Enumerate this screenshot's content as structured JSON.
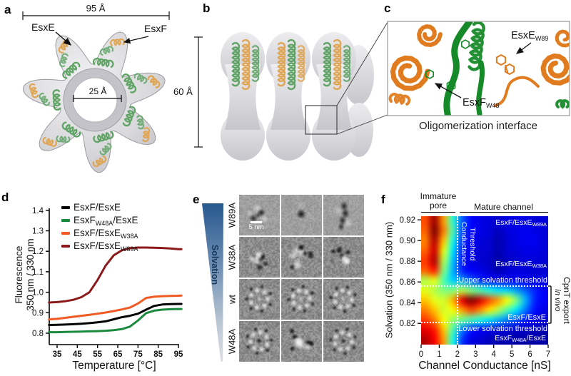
{
  "panels": {
    "a": "a",
    "b": "b",
    "c": "c",
    "d": "d",
    "e": "e",
    "f": "f"
  },
  "panel_a": {
    "width_label": "95 Å",
    "pore_label": "25 Å",
    "esxe": "EsxE",
    "esxf": "EsxF"
  },
  "panel_b": {
    "height_label": "60 Å"
  },
  "panel_c": {
    "esxe": {
      "pre": "EsxE",
      "sub": "W89"
    },
    "esxf": {
      "pre": "EsxF",
      "sub": "W48"
    },
    "caption": "Oligomerization interface"
  },
  "panel_d": {
    "legend": [
      {
        "pre": "EsxF/EsxE",
        "sub": "",
        "post": "",
        "color": "#000000"
      },
      {
        "pre": "EsxF",
        "sub": "W48A",
        "post": "/EsxE",
        "color": "#1b8a3f"
      },
      {
        "pre": "EsxF/EsxE",
        "sub": "W38A",
        "post": "",
        "color": "#f05a24"
      },
      {
        "pre": "EsxF/EsxE",
        "sub": "W89A",
        "post": "",
        "color": "#8c1a1a"
      }
    ]
  },
  "panel_e": {
    "solvation_label": "Solvation",
    "scale_bar": "5 nm",
    "grid": [
      {
        "label": "W89A",
        "cells": [
          "pair",
          "dot",
          "rod"
        ]
      },
      {
        "label": "W38A",
        "cells": [
          "cluster-a",
          "cluster-b",
          "cluster-c"
        ]
      },
      {
        "label": "wt",
        "cells": [
          "ring-a",
          "ring-b",
          "ring-c"
        ]
      },
      {
        "label": "W48A",
        "cells": [
          "ring-d",
          "cluster-d",
          "ring-e"
        ]
      }
    ]
  },
  "panel_f": {
    "immature_line1": "Immature",
    "immature_line2": "pore",
    "mature": "Mature channel",
    "threshold_line1": "Conductance",
    "threshold_line2": "Threshold",
    "upper_threshold": "Upper solvation threshold",
    "lower_threshold": "Lower solvation threshold",
    "label_w89a": {
      "pre": "EsxF/EsxE",
      "sub": "W89A",
      "post": ""
    },
    "label_w38a": {
      "pre": "EsxF/EsxE",
      "sub": "W38A",
      "post": ""
    },
    "label_wt": {
      "pre": "EsxF/EsxE",
      "sub": "",
      "post": ""
    },
    "label_w48a": {
      "pre": "EsxF",
      "sub": "W48A",
      "post": "/EsxE"
    },
    "bracket_label": "CpnT export",
    "bracket_label_italic": "in vivo"
  },
  "chart_data": [
    {
      "type": "line",
      "xlabel": "Temperature [°C]",
      "ylabel_line1": "Fluorescence",
      "ylabel_line2": "350 nm / 330 nm",
      "xlim": [
        31,
        96.5
      ],
      "ylim": [
        0.744,
        1.44
      ],
      "x_ticks": [
        35,
        45,
        55,
        65,
        75,
        85,
        95
      ],
      "y_ticks": [
        0.8,
        0.9,
        1.0,
        1.1,
        1.2,
        1.3,
        1.4
      ],
      "x": [
        31,
        35,
        39,
        43,
        47,
        51,
        55,
        59,
        63,
        67,
        71,
        75,
        79,
        83,
        87,
        91,
        95,
        96.5
      ],
      "series": [
        {
          "name": "EsxF/EsxE",
          "color": "#000000",
          "values": [
            0.84,
            0.841,
            0.842,
            0.844,
            0.846,
            0.849,
            0.853,
            0.858,
            0.868,
            0.878,
            0.885,
            0.895,
            0.915,
            0.933,
            0.94,
            0.942,
            0.943,
            0.943
          ]
        },
        {
          "name": "EsxF_W48A/EsxE",
          "color": "#1b8a3f",
          "values": [
            0.805,
            0.805,
            0.806,
            0.807,
            0.808,
            0.809,
            0.81,
            0.812,
            0.815,
            0.82,
            0.832,
            0.862,
            0.898,
            0.91,
            0.915,
            0.917,
            0.918,
            0.918
          ]
        },
        {
          "name": "EsxF/EsxE_W38A",
          "color": "#f05a24",
          "values": [
            0.868,
            0.87,
            0.875,
            0.88,
            0.885,
            0.89,
            0.895,
            0.901,
            0.908,
            0.916,
            0.925,
            0.945,
            0.972,
            0.978,
            0.981,
            0.982,
            0.983,
            0.984
          ]
        },
        {
          "name": "EsxF/EsxE_W89A",
          "color": "#8c1a1a",
          "values": [
            0.95,
            0.952,
            0.956,
            0.963,
            0.976,
            1.0,
            1.06,
            1.13,
            1.18,
            1.205,
            1.215,
            1.218,
            1.218,
            1.217,
            1.216,
            1.214,
            1.21,
            1.21
          ]
        }
      ]
    },
    {
      "type": "heatmap",
      "xlabel": "Channel Conductance [nS]",
      "ylabel": "Solvation (350 nm / 330 nm)",
      "x_range": [
        0,
        7
      ],
      "y_range": [
        0.7995,
        0.9235
      ],
      "x_ticks": [
        0,
        1,
        2,
        3,
        4,
        5,
        6,
        7
      ],
      "y_ticks": [
        0.92,
        0.9,
        0.88,
        0.86,
        0.84,
        0.82
      ],
      "colormap": "jet",
      "thresholds": {
        "conductance_nS": 2,
        "upper_solvation": 0.856,
        "lower_solvation": 0.8205
      },
      "grid_x": [
        0.25,
        0.75,
        1.25,
        1.75,
        2.25,
        2.75,
        3.25,
        3.75,
        4.25,
        4.75,
        5.25,
        5.75,
        6.25,
        6.75
      ],
      "grid_y": [
        0.92,
        0.91,
        0.9,
        0.89,
        0.88,
        0.87,
        0.86,
        0.85,
        0.84,
        0.83,
        0.82,
        0.81,
        0.8
      ],
      "values": [
        [
          0.8,
          0.97,
          0.72,
          0.42,
          0.22,
          0.13,
          0.1,
          0.09,
          0.08,
          0.1,
          0.1,
          0.1,
          0.09,
          0.09
        ],
        [
          0.78,
          1.0,
          0.75,
          0.45,
          0.2,
          0.13,
          0.1,
          0.09,
          0.06,
          0.09,
          0.1,
          0.11,
          0.1,
          0.09
        ],
        [
          0.75,
          0.95,
          0.68,
          0.4,
          0.18,
          0.12,
          0.09,
          0.08,
          0.05,
          0.08,
          0.1,
          0.11,
          0.11,
          0.09
        ],
        [
          0.78,
          0.92,
          0.6,
          0.35,
          0.16,
          0.11,
          0.08,
          0.08,
          0.05,
          0.08,
          0.09,
          0.1,
          0.1,
          0.09
        ],
        [
          0.82,
          0.95,
          0.55,
          0.32,
          0.15,
          0.1,
          0.08,
          0.07,
          0.04,
          0.07,
          0.08,
          0.09,
          0.09,
          0.08
        ],
        [
          0.78,
          0.85,
          0.5,
          0.3,
          0.16,
          0.12,
          0.1,
          0.08,
          0.05,
          0.08,
          0.09,
          0.09,
          0.08,
          0.08
        ],
        [
          0.55,
          0.6,
          0.45,
          0.33,
          0.28,
          0.22,
          0.17,
          0.14,
          0.11,
          0.11,
          0.12,
          0.11,
          0.1,
          0.1
        ],
        [
          0.6,
          0.55,
          0.5,
          0.5,
          0.55,
          0.5,
          0.45,
          0.4,
          0.35,
          0.33,
          0.28,
          0.22,
          0.16,
          0.12
        ],
        [
          0.68,
          0.6,
          0.58,
          0.7,
          0.9,
          1.0,
          0.92,
          0.8,
          0.72,
          0.62,
          0.5,
          0.3,
          0.16,
          0.12
        ],
        [
          0.75,
          0.68,
          0.58,
          0.62,
          0.72,
          0.8,
          0.74,
          0.65,
          0.55,
          0.45,
          0.35,
          0.24,
          0.14,
          0.1
        ],
        [
          0.82,
          0.75,
          0.62,
          0.52,
          0.48,
          0.44,
          0.4,
          0.35,
          0.3,
          0.25,
          0.2,
          0.15,
          0.1,
          0.08
        ],
        [
          0.9,
          0.85,
          0.68,
          0.45,
          0.25,
          0.15,
          0.12,
          0.1,
          0.09,
          0.08,
          0.07,
          0.07,
          0.06,
          0.05
        ],
        [
          0.95,
          0.88,
          0.72,
          0.4,
          0.18,
          0.1,
          0.08,
          0.06,
          0.05,
          0.05,
          0.04,
          0.04,
          0.04,
          0.04
        ]
      ]
    }
  ]
}
